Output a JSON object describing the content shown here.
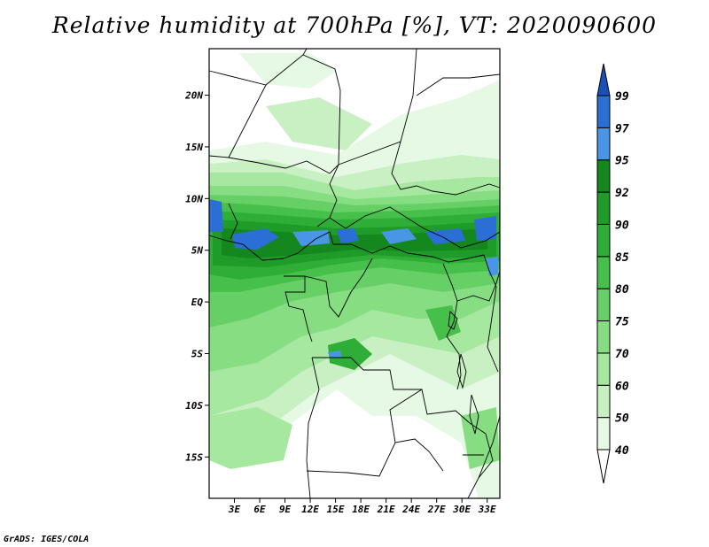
{
  "figure": {
    "title": "Relative humidity at 700hPa [%], VT: 2020090600",
    "credit": "GrADS: IGES/COLA"
  },
  "map": {
    "lat_range": [
      -19,
      24.5
    ],
    "lon_range": [
      0,
      34.5
    ],
    "lat_labels": [
      {
        "lat": 20,
        "label": "20N"
      },
      {
        "lat": 15,
        "label": "15N"
      },
      {
        "lat": 10,
        "label": "10N"
      },
      {
        "lat": 5,
        "label": "5N"
      },
      {
        "lat": 0,
        "label": "EQ"
      },
      {
        "lat": -5,
        "label": "5S"
      },
      {
        "lat": -10,
        "label": "10S"
      },
      {
        "lat": -15,
        "label": "15S"
      }
    ],
    "lon_labels": [
      {
        "lon": 3,
        "label": "3E"
      },
      {
        "lon": 6,
        "label": "6E"
      },
      {
        "lon": 9,
        "label": "9E"
      },
      {
        "lon": 12,
        "label": "12E"
      },
      {
        "lon": 15,
        "label": "15E"
      },
      {
        "lon": 18,
        "label": "18E"
      },
      {
        "lon": 21,
        "label": "21E"
      },
      {
        "lon": 24,
        "label": "24E"
      },
      {
        "lon": 27,
        "label": "27E"
      },
      {
        "lon": 30,
        "label": "30E"
      },
      {
        "lon": 33,
        "label": "33E"
      }
    ]
  },
  "colorbar": {
    "levels": [
      "40",
      "50",
      "60",
      "70",
      "75",
      "80",
      "85",
      "90",
      "92",
      "95",
      "97",
      "99"
    ],
    "colors": [
      "#ffffff",
      "#e6f9e4",
      "#c8f0c2",
      "#a6e8a0",
      "#86dd82",
      "#66d066",
      "#47c04b",
      "#2fae37",
      "#1e9b28",
      "#14881e",
      "#4a96e6",
      "#2b6fd6",
      "#1d4fb8"
    ]
  }
}
